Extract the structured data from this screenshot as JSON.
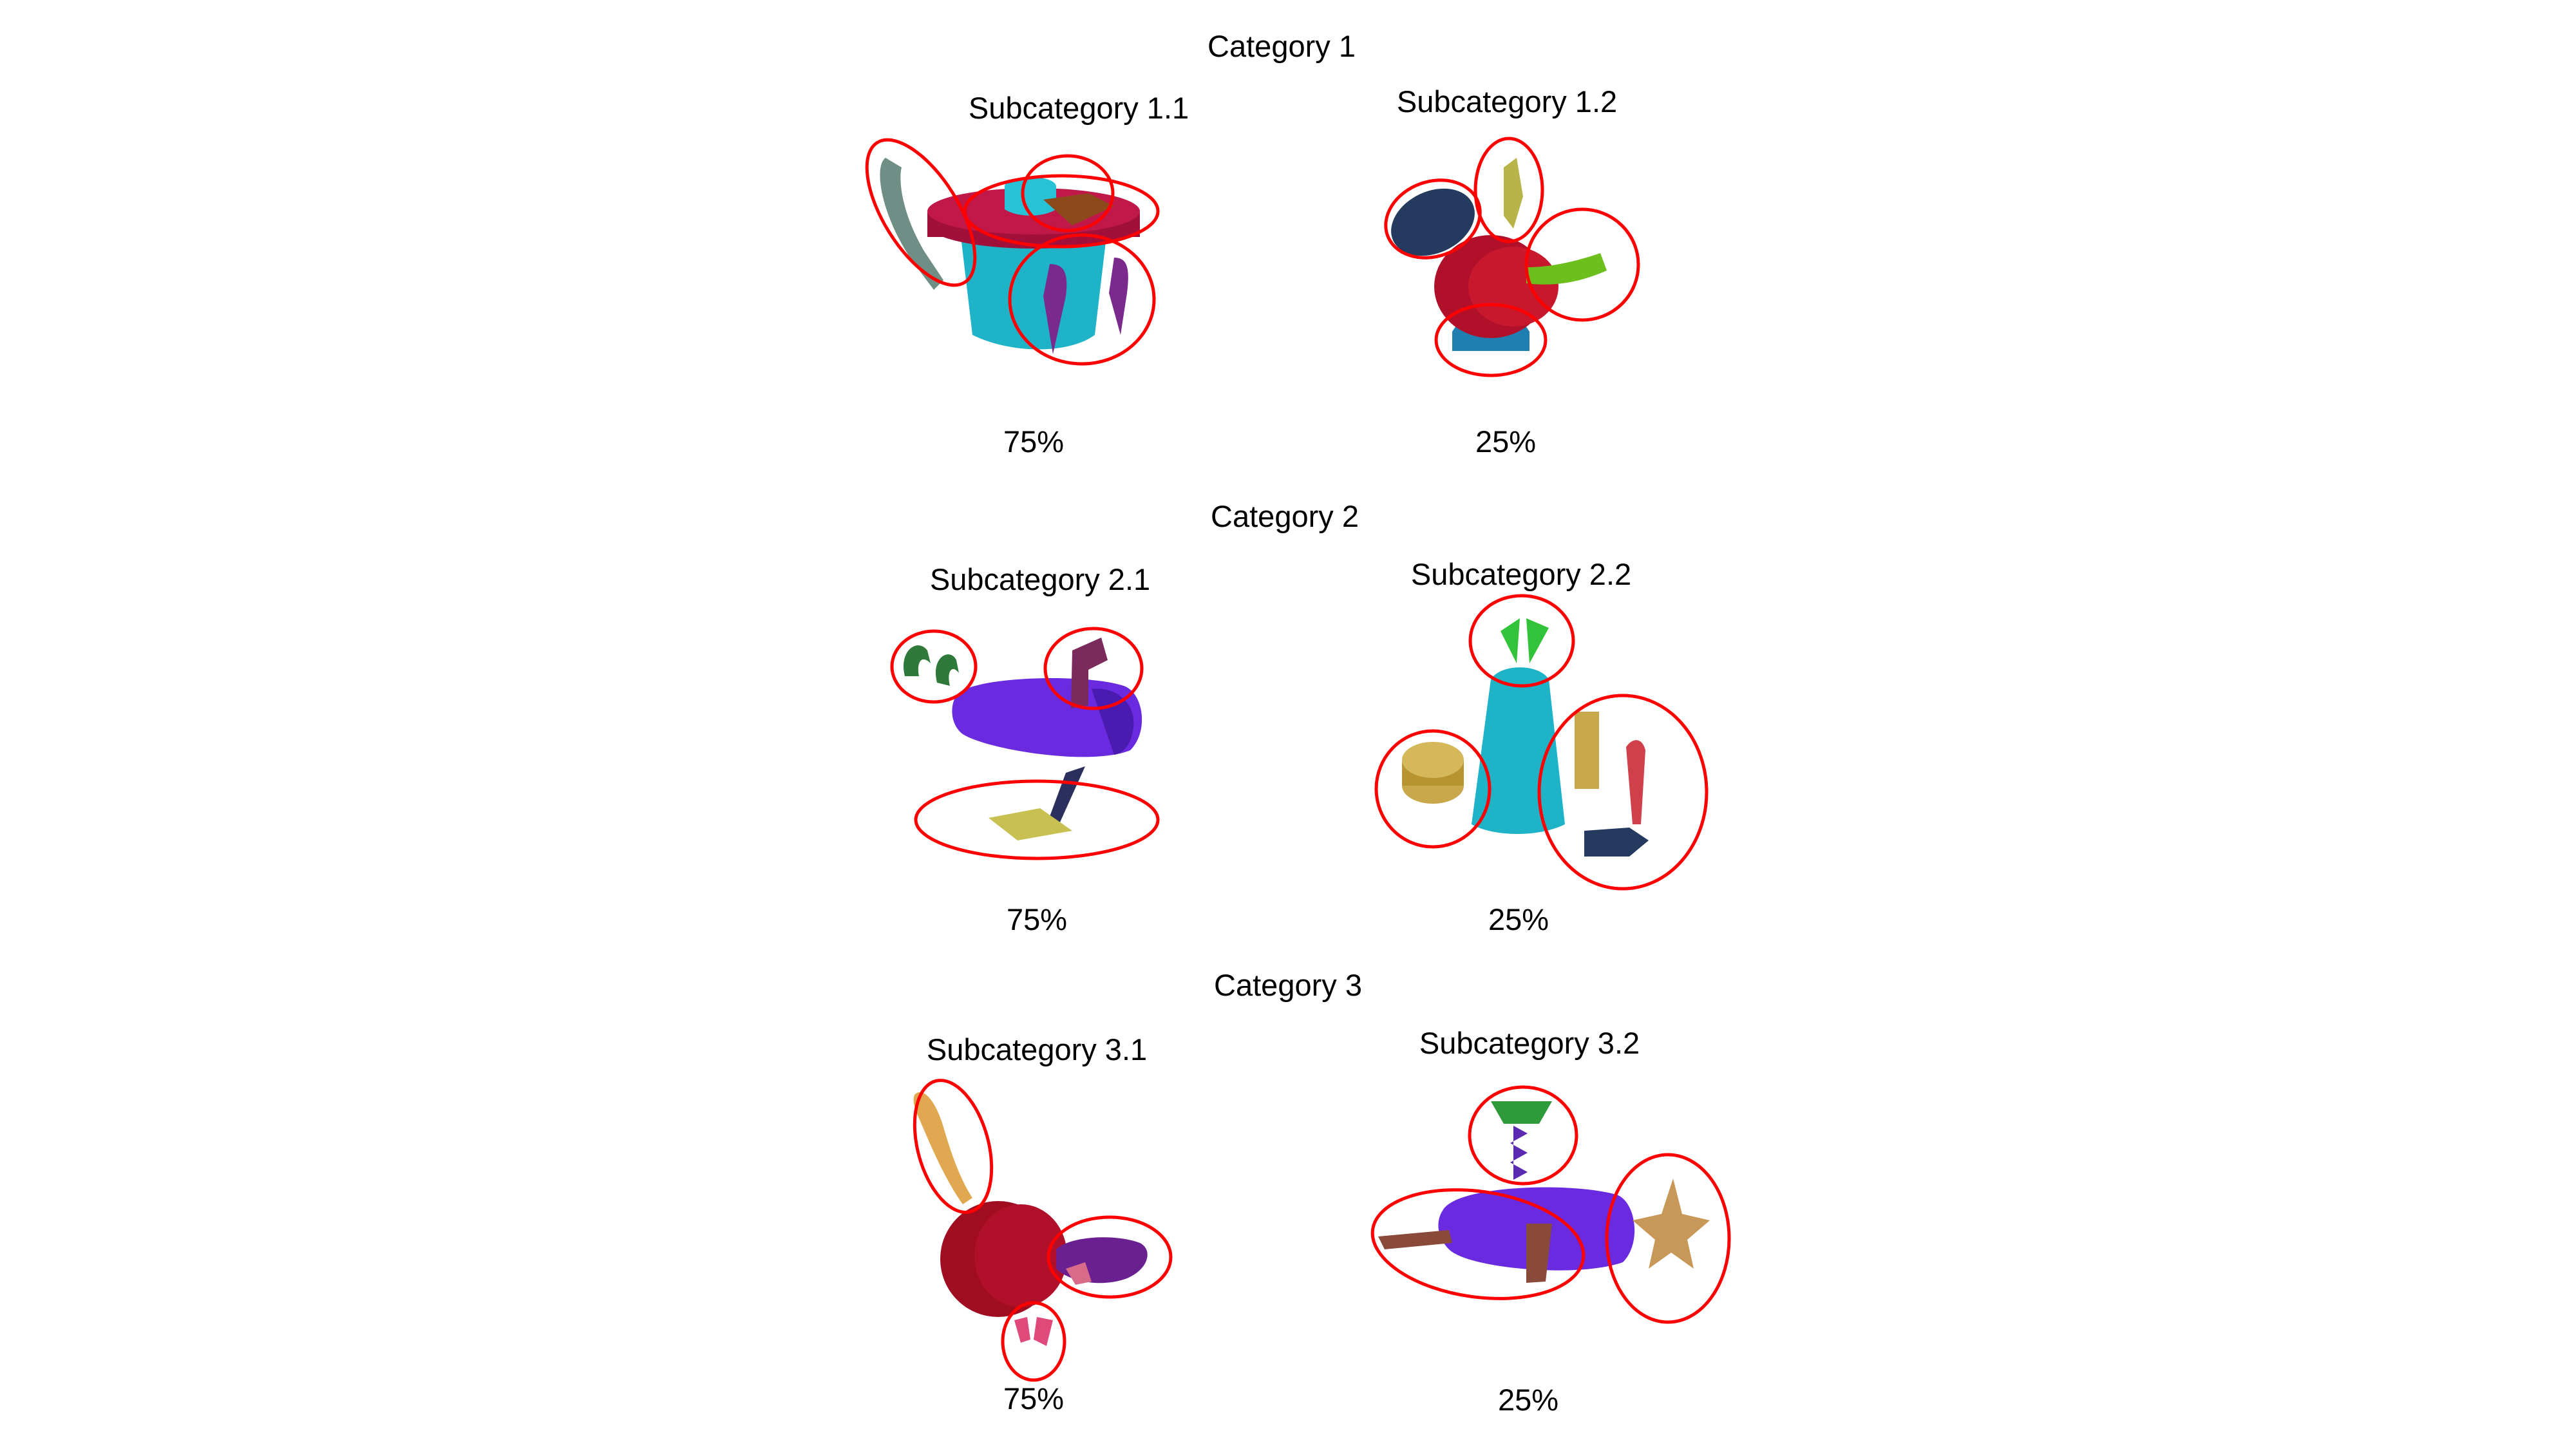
{
  "categories": [
    {
      "title": "Category 1",
      "subcategories": [
        {
          "label": "Subcategory 1.1",
          "percent": "75%"
        },
        {
          "label": "Subcategory 1.2",
          "percent": "25%"
        }
      ]
    },
    {
      "title": "Category 2",
      "subcategories": [
        {
          "label": "Subcategory 2.1",
          "percent": "75%"
        },
        {
          "label": "Subcategory 2.2",
          "percent": "25%"
        }
      ]
    },
    {
      "title": "Category 3",
      "subcategories": [
        {
          "label": "Subcategory 3.1",
          "percent": "75%"
        },
        {
          "label": "Subcategory 3.2",
          "percent": "25%"
        }
      ]
    }
  ],
  "colors": {
    "highlight": "#ff0000",
    "cyan": "#1fb3c8",
    "crimson": "#b0102a",
    "purple": "#6a2be0",
    "green": "#33c33a",
    "navy": "#243a5e",
    "tan": "#c89858"
  }
}
